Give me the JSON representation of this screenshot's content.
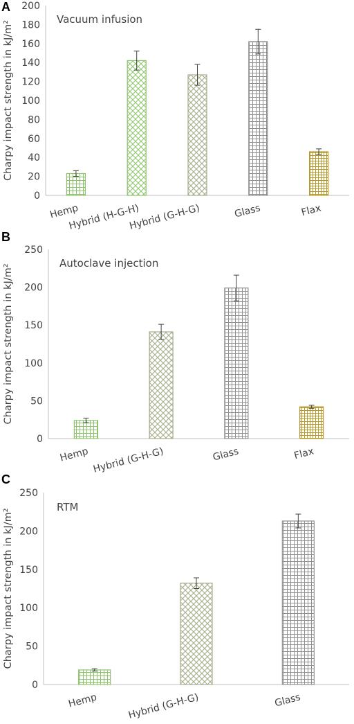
{
  "colors": {
    "green": "#8cc26a",
    "hybrid": "#a3ad8a",
    "gray": "#8f8f8f",
    "yellow": "#b89a2a",
    "text": "#404040",
    "axis": "#bfbfbf"
  },
  "chart_data": [
    {
      "panel": "A",
      "type": "bar",
      "title": "Vacuum infusion",
      "ylabel": "Charpy impact strength in kJ/m²",
      "xlabel": "",
      "ylim": [
        0,
        200
      ],
      "yticks": [
        "0",
        "20",
        "40",
        "60",
        "80",
        "100",
        "120",
        "140",
        "160",
        "180",
        "200"
      ],
      "categories": [
        "Hemp",
        "Hybrid (H-G-H)",
        "Hybrid (G-H-G)",
        "Glass",
        "Flax"
      ],
      "values": [
        23,
        142,
        127,
        162,
        46
      ],
      "errors": [
        3,
        10,
        11,
        13,
        3
      ],
      "grid": false,
      "bar_styles": [
        "green-grid",
        "green-cross",
        "hybrid-cross",
        "gray-grid",
        "yellow-grid"
      ]
    },
    {
      "panel": "B",
      "type": "bar",
      "title": "Autoclave injection",
      "ylabel": "Charpy impact strength in kJ/m²",
      "xlabel": "",
      "ylim": [
        0,
        250
      ],
      "yticks": [
        "0",
        "50",
        "100",
        "150",
        "200",
        "250"
      ],
      "categories": [
        "Hemp",
        "Hybrid (G-H-G)",
        "Glass",
        "Flax"
      ],
      "values": [
        24,
        141,
        199,
        42
      ],
      "errors": [
        3,
        10,
        17,
        2
      ],
      "grid": false,
      "bar_styles": [
        "green-grid",
        "hybrid-cross",
        "gray-grid",
        "yellow-grid"
      ]
    },
    {
      "panel": "C",
      "type": "bar",
      "title": "RTM",
      "ylabel": "Charpy impact strength in kJ/m²",
      "xlabel": "",
      "ylim": [
        0,
        250
      ],
      "yticks": [
        "0",
        "50",
        "100",
        "150",
        "200",
        "250"
      ],
      "categories": [
        "Hemp",
        "Hybrid (G-H-G)",
        "Glass"
      ],
      "values": [
        19,
        132,
        213
      ],
      "errors": [
        1.5,
        7,
        9
      ],
      "grid": false,
      "bar_styles": [
        "green-grid",
        "hybrid-cross",
        "gray-grid"
      ]
    }
  ]
}
